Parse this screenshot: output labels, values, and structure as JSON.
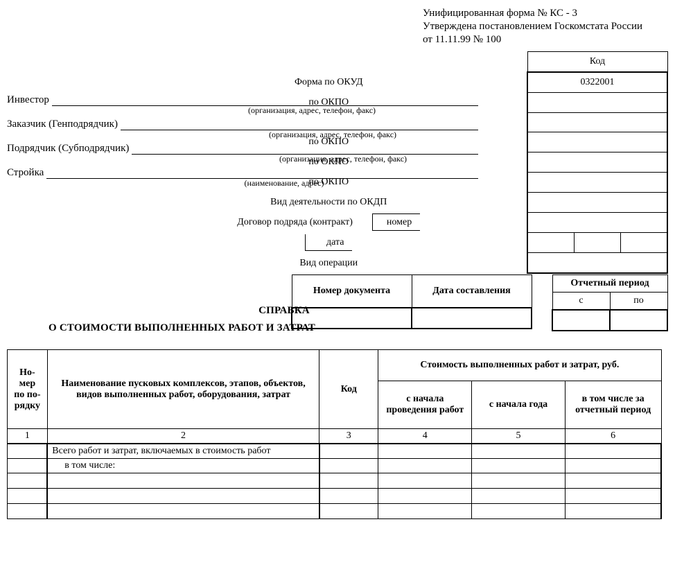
{
  "approval": {
    "line1": "Унифицированная форма № КС - 3",
    "line2": "Утверждена постановлением Госкомстата России",
    "line3": "от 11.11.99 № 100"
  },
  "codeHeader": "Код",
  "rows": {
    "okud": {
      "label": "Форма по ОКУД",
      "value": "0322001"
    },
    "investor": {
      "label": "Инвестор",
      "hint": "(организация, адрес, телефон, факс)",
      "codeLabel": "по ОКПО",
      "value": ""
    },
    "customer": {
      "label": "Заказчик  (Генподрядчик)",
      "hint": "(организация, адрес, телефон, факс)",
      "codeLabel": "по ОКПО",
      "value": ""
    },
    "contractor": {
      "label": "Подрядчик (Субподрядчик)",
      "hint": "(организация, адрес, телефон, факс)",
      "codeLabel": "по ОКПО",
      "value": ""
    },
    "construction": {
      "label": "Стройка",
      "hint": "(наименование, адрес)",
      "codeLabel": "по ОКПО",
      "value": ""
    },
    "activity": {
      "label": "Вид деятельности по ОКДП",
      "value": ""
    },
    "contract": {
      "label": "Договор подряда (контракт)",
      "numLabel": "номер",
      "numValue": "",
      "dateLabel": "дата",
      "d1": "",
      "d2": "",
      "d3": ""
    },
    "operation": {
      "label": "Вид операции",
      "value": ""
    }
  },
  "docMeta": {
    "numHeader": "Номер документа",
    "dateHeader": "Дата составления",
    "numValue": "",
    "dateValue": ""
  },
  "period": {
    "header": "Отчетный период",
    "from": "с",
    "to": "по",
    "fromValue": "",
    "toValue": ""
  },
  "title": {
    "line1": "СПРАВКА",
    "line2": "О СТОИМОСТИ ВЫПОЛНЕННЫХ РАБОТ И ЗАТРАТ"
  },
  "mainTable": {
    "headers": {
      "num": "Но-\nмер\nпо по-\nрядку",
      "name": "Наименование пусковых комплексов, этапов, объектов, видов выполненных работ, оборудования, затрат",
      "code": "Код",
      "costGroup": "Стоимость выполненных работ и затрат, руб.",
      "fromStart": "с начала проведения работ",
      "fromYear": "с начала года",
      "forPeriod": "в том числе за отчетный период"
    },
    "colnums": [
      "1",
      "2",
      "3",
      "4",
      "5",
      "6"
    ],
    "rows": [
      {
        "num": "",
        "name": "Всего работ и затрат, включаемых в стоимость работ",
        "indent": false,
        "code": "",
        "c4": "",
        "c5": "",
        "c6": ""
      },
      {
        "num": "",
        "name": "в том числе:",
        "indent": true,
        "code": "",
        "c4": "",
        "c5": "",
        "c6": ""
      },
      {
        "num": "",
        "name": "",
        "indent": false,
        "code": "",
        "c4": "",
        "c5": "",
        "c6": ""
      },
      {
        "num": "",
        "name": "",
        "indent": false,
        "code": "",
        "c4": "",
        "c5": "",
        "c6": ""
      },
      {
        "num": "",
        "name": "",
        "indent": false,
        "code": "",
        "c4": "",
        "c5": "",
        "c6": ""
      }
    ]
  },
  "layout": {
    "codeCellWidth": 194,
    "dateSubCellWidth": 64,
    "docNumColWidth": 170,
    "docDateColWidth": 170,
    "periodColWidth": 80,
    "mainColWidths": {
      "c1": 58,
      "c2": 398,
      "c3": 86,
      "c4": 136,
      "c5": 136,
      "c6": 140
    }
  }
}
